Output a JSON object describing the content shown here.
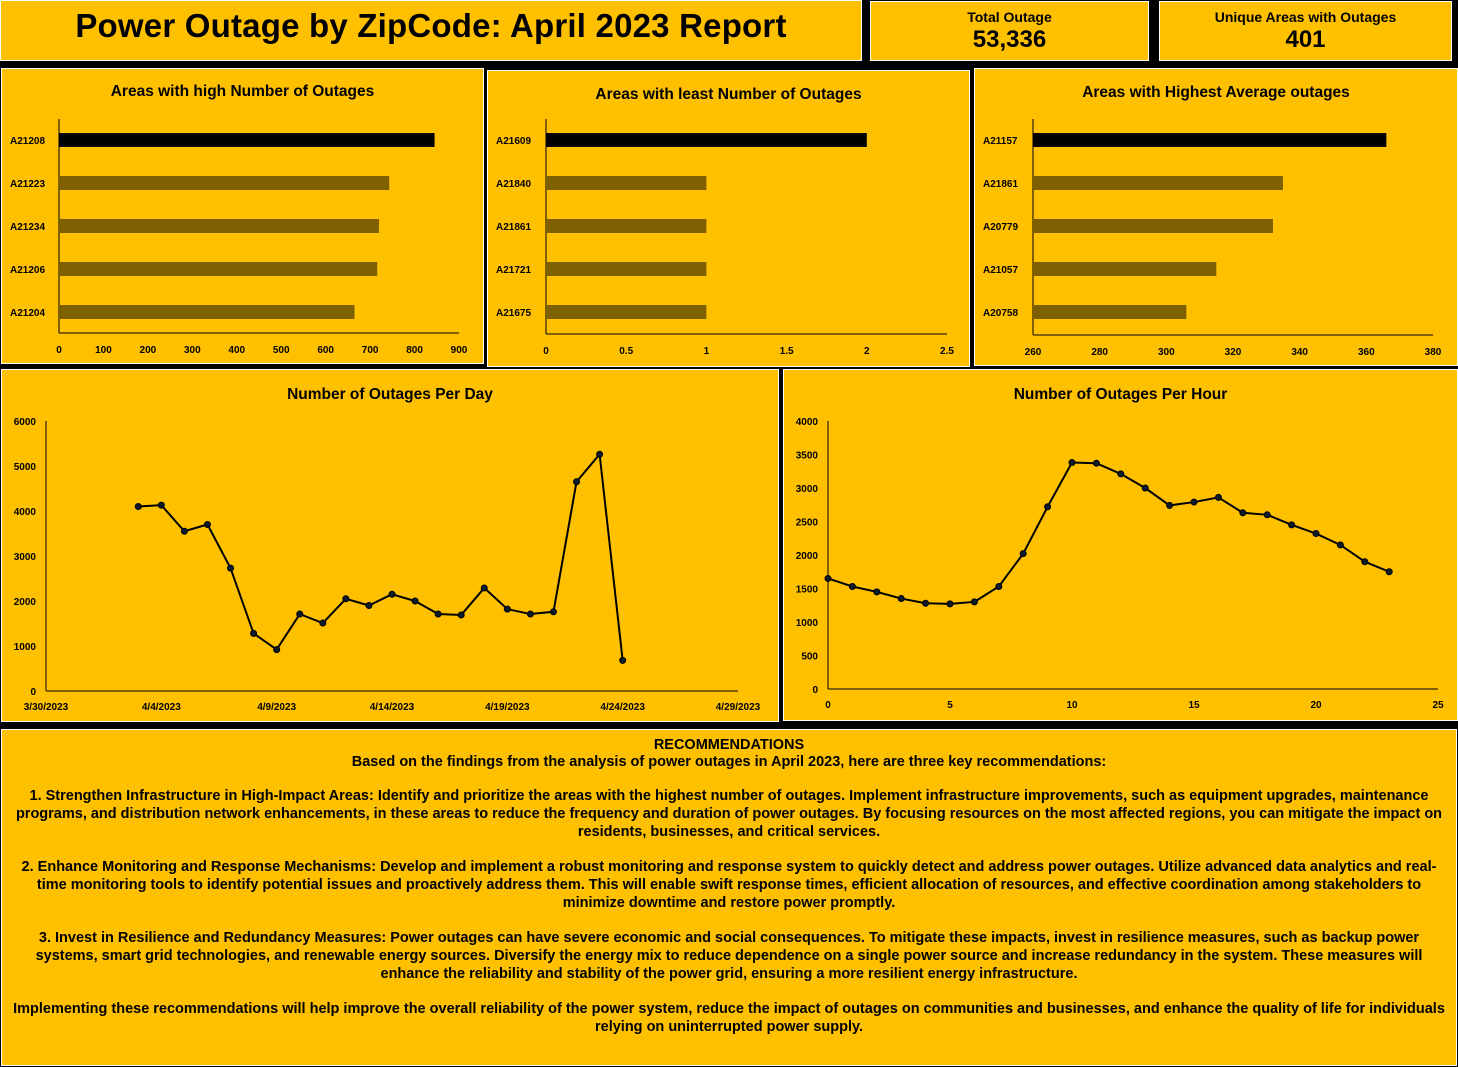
{
  "header": {
    "title": "Power Outage by ZipCode: April 2023 Report"
  },
  "kpis": {
    "total_label": "Total Outage",
    "total_value": "53,336",
    "unique_label": "Unique Areas with Outages",
    "unique_value": "401"
  },
  "colors": {
    "background": "#FFC000",
    "highlight_bar": "#000000",
    "bar": "#7F6000",
    "line": "#000000"
  },
  "chart_data": [
    {
      "type": "bar",
      "title": "Areas with high Number of Outages",
      "categories": [
        "A21208",
        "A21223",
        "A21234",
        "A21206",
        "A21204"
      ],
      "values": [
        845,
        743,
        720,
        716,
        665
      ],
      "xlim": [
        0,
        900
      ],
      "ticks": [
        0,
        100,
        200,
        300,
        400,
        500,
        600,
        700,
        800,
        900
      ],
      "tick_labels": [
        "0",
        "100",
        "200",
        "300",
        "400",
        "500",
        "600",
        "700",
        "800",
        "900"
      ]
    },
    {
      "type": "bar",
      "title": "Areas with least Number of Outages",
      "categories": [
        "A21609",
        "A21840",
        "A21861",
        "A21721",
        "A21675"
      ],
      "values": [
        2,
        1,
        1,
        1,
        1
      ],
      "xlim": [
        0,
        2.5
      ],
      "ticks": [
        0,
        0.5,
        1,
        1.5,
        2,
        2.5
      ],
      "tick_labels": [
        "0",
        "0.5",
        "1",
        "1.5",
        "2",
        "2.5"
      ]
    },
    {
      "type": "bar",
      "title": "Areas with Highest Average outages",
      "categories": [
        "A21157",
        "A21861",
        "A20779",
        "A21057",
        "A20758"
      ],
      "values": [
        366,
        335,
        332,
        315,
        306
      ],
      "xlim": [
        260,
        380
      ],
      "ticks": [
        260,
        280,
        300,
        320,
        340,
        360,
        380
      ],
      "tick_labels": [
        "260",
        "280",
        "300",
        "320",
        "340",
        "360",
        "380"
      ]
    },
    {
      "type": "line",
      "title": "Number of Outages Per Day",
      "x": [
        "4/3/2023",
        "4/4/2023",
        "4/5/2023",
        "4/6/2023",
        "4/7/2023",
        "4/8/2023",
        "4/9/2023",
        "4/10/2023",
        "4/11/2023",
        "4/12/2023",
        "4/13/2023",
        "4/14/2023",
        "4/15/2023",
        "4/16/2023",
        "4/17/2023",
        "4/18/2023",
        "4/19/2023",
        "4/20/2023",
        "4/21/2023",
        "4/22/2023",
        "4/23/2023",
        "4/24/2023"
      ],
      "y": [
        4100,
        4130,
        3550,
        3700,
        2730,
        1280,
        920,
        1710,
        1510,
        2050,
        1900,
        2150,
        2000,
        1710,
        1690,
        2290,
        1820,
        1710,
        1760,
        4650,
        5260,
        680
      ],
      "xlim": [
        "3/30/2023",
        "4/29/2023"
      ],
      "ylim": [
        0,
        6000
      ],
      "x_tick_labels": [
        "3/30/2023",
        "4/4/2023",
        "4/9/2023",
        "4/14/2023",
        "4/19/2023",
        "4/24/2023",
        "4/29/2023"
      ],
      "y_tick_labels": [
        "0",
        "1000",
        "2000",
        "3000",
        "4000",
        "5000",
        "6000"
      ]
    },
    {
      "type": "line",
      "title": "Number of Outages Per Hour",
      "x": [
        0,
        1,
        2,
        3,
        4,
        5,
        6,
        7,
        8,
        9,
        10,
        11,
        12,
        13,
        14,
        15,
        16,
        17,
        18,
        19,
        20,
        21,
        22,
        23
      ],
      "y": [
        1650,
        1530,
        1450,
        1350,
        1280,
        1270,
        1300,
        1530,
        2020,
        2720,
        3380,
        3370,
        3210,
        3000,
        2740,
        2790,
        2860,
        2630,
        2600,
        2450,
        2320,
        2150,
        1900,
        1750
      ],
      "xlim": [
        0,
        25
      ],
      "ylim": [
        0,
        4000
      ],
      "x_tick_labels": [
        "0",
        "5",
        "10",
        "15",
        "20",
        "25"
      ],
      "y_tick_labels": [
        "0",
        "500",
        "1000",
        "1500",
        "2000",
        "2500",
        "3000",
        "3500",
        "4000"
      ]
    }
  ],
  "recommendations": {
    "title": "RECOMMENDATIONS",
    "intro": "Based on the findings from the analysis of power outages in April 2023, here are three key recommendations:",
    "item1": "1. Strengthen Infrastructure in High-Impact Areas: Identify and prioritize the areas with the highest number of outages. Implement infrastructure improvements, such as equipment upgrades, maintenance programs, and distribution network enhancements, in these areas to reduce the frequency and duration of power outages. By focusing resources on the most affected regions, you can mitigate the impact on residents, businesses, and critical services.",
    "item2": "2. Enhance Monitoring and Response Mechanisms: Develop and implement a robust monitoring and response system to quickly detect and address power outages. Utilize advanced data analytics and real-time monitoring tools to identify potential issues and proactively address them. This will enable swift response times, efficient allocation of resources, and effective coordination among stakeholders to minimize downtime and restore power promptly.",
    "item3": "3. Invest in Resilience and Redundancy Measures: Power outages can have severe economic and social consequences. To mitigate these impacts, invest in resilience measures, such as backup power systems, smart grid technologies, and renewable energy sources. Diversify the energy mix to reduce dependence on a single power source and increase redundancy in the system. These measures will enhance the reliability and stability of the power grid, ensuring a more resilient energy infrastructure.",
    "closing": "Implementing these recommendations will help improve the overall reliability of the power system, reduce the impact of outages on communities and businesses, and enhance the quality of life for individuals relying on uninterrupted power supply."
  }
}
